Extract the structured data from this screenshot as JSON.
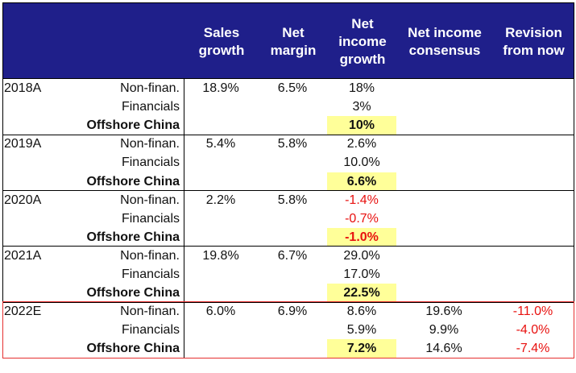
{
  "headers": {
    "sales": "Sales\ngrowth",
    "margin": "Net\nmargin",
    "ni_growth": "Net\nincome\ngrowth",
    "consensus": "Net income\nconsensus",
    "revision": "Revision\nfrom now"
  },
  "groups": [
    {
      "year": "2018A",
      "rows": [
        {
          "segment": "Non-finan.",
          "sales": "18.9%",
          "margin": "6.5%",
          "ni": "18%",
          "consensus": "",
          "revision": ""
        },
        {
          "segment": "Financials",
          "sales": "",
          "margin": "",
          "ni": "3%",
          "consensus": "",
          "revision": ""
        },
        {
          "segment": "Offshore China",
          "sales": "",
          "margin": "",
          "ni": "10%",
          "consensus": "",
          "revision": ""
        }
      ]
    },
    {
      "year": "2019A",
      "rows": [
        {
          "segment": "Non-finan.",
          "sales": "5.4%",
          "margin": "5.8%",
          "ni": "2.6%",
          "consensus": "",
          "revision": ""
        },
        {
          "segment": "Financials",
          "sales": "",
          "margin": "",
          "ni": "10.0%",
          "consensus": "",
          "revision": ""
        },
        {
          "segment": "Offshore China",
          "sales": "",
          "margin": "",
          "ni": "6.6%",
          "consensus": "",
          "revision": ""
        }
      ]
    },
    {
      "year": "2020A",
      "rows": [
        {
          "segment": "Non-finan.",
          "sales": "2.2%",
          "margin": "5.8%",
          "ni": "-1.4%",
          "consensus": "",
          "revision": ""
        },
        {
          "segment": "Financials",
          "sales": "",
          "margin": "",
          "ni": "-0.7%",
          "consensus": "",
          "revision": ""
        },
        {
          "segment": "Offshore China",
          "sales": "",
          "margin": "",
          "ni": "-1.0%",
          "consensus": "",
          "revision": ""
        }
      ]
    },
    {
      "year": "2021A",
      "rows": [
        {
          "segment": "Non-finan.",
          "sales": "19.8%",
          "margin": "6.7%",
          "ni": "29.0%",
          "consensus": "",
          "revision": ""
        },
        {
          "segment": "Financials",
          "sales": "",
          "margin": "",
          "ni": "17.0%",
          "consensus": "",
          "revision": ""
        },
        {
          "segment": "Offshore China",
          "sales": "",
          "margin": "",
          "ni": "22.5%",
          "consensus": "",
          "revision": ""
        }
      ]
    },
    {
      "year": "2022E",
      "rows": [
        {
          "segment": "Non-finan.",
          "sales": "6.0%",
          "margin": "6.9%",
          "ni": "8.6%",
          "consensus": "19.6%",
          "revision": "-11.0%"
        },
        {
          "segment": "Financials",
          "sales": "",
          "margin": "",
          "ni": "5.9%",
          "consensus": "9.9%",
          "revision": "-4.0%"
        },
        {
          "segment": "Offshore China",
          "sales": "",
          "margin": "",
          "ni": "7.2%",
          "consensus": "14.6%",
          "revision": "-7.4%"
        }
      ]
    }
  ],
  "colors": {
    "header_bg": "#1f1f8a",
    "highlight": "#ffff99",
    "negative": "#e8110f",
    "frame": "#e53030"
  }
}
